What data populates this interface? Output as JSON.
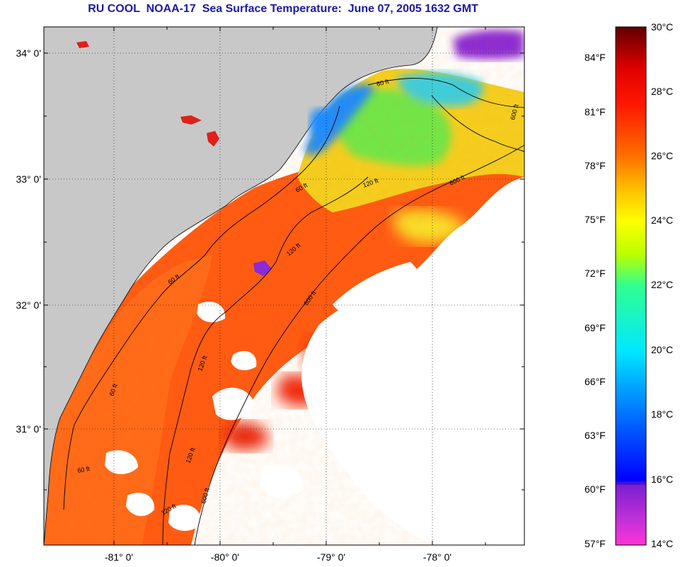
{
  "title": "RU COOL  NOAA-17  Sea Surface Temperature:  June 07, 2005 1632 GMT",
  "lat_labels": [
    "34° 0'",
    "33° 0'",
    "32° 0'",
    "31° 0'"
  ],
  "lon_labels": [
    "-81° 0'",
    "-80° 0'",
    "-79° 0'",
    "-78° 0'"
  ],
  "contour_labels": [
    "60 ft",
    "60 ft",
    "120 ft",
    "600 ft",
    "60 ft",
    "120 ft",
    "600 ft",
    "60 ft",
    "120 ft",
    "600 ft",
    "60 ft",
    "120 ft",
    "600 ft",
    "120 ft"
  ],
  "colorbar": {
    "celsius": [
      "30°C",
      "28°C",
      "26°C",
      "24°C",
      "22°C",
      "20°C",
      "18°C",
      "16°C",
      "14°C"
    ],
    "fahrenheit": [
      "84°F",
      "81°F",
      "78°F",
      "75°F",
      "72°F",
      "69°F",
      "66°F",
      "63°F",
      "60°F",
      "57°F"
    ],
    "celsius_range": [
      14,
      30
    ],
    "colors": [
      "#ff33d8",
      "#7b1fd0",
      "#0000ff",
      "#0090ff",
      "#00e8ff",
      "#30ff90",
      "#b8ff00",
      "#ffff00",
      "#ffa000",
      "#ff5000",
      "#ff0000",
      "#b00000",
      "#600000"
    ]
  },
  "colors": {
    "land": "#c8c8c8",
    "cloud": "#ffffff",
    "title": "#1a1aa8"
  }
}
